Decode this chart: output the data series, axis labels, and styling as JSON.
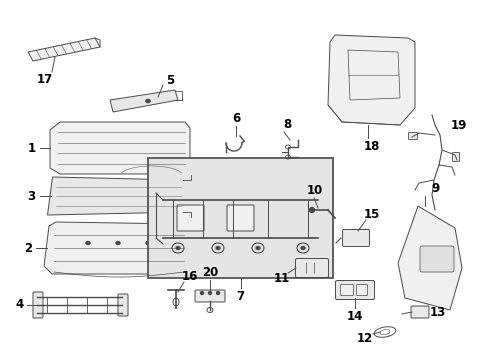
{
  "bg_color": "#ffffff",
  "border_color": "#cccccc",
  "line_color": "#4a4a4a",
  "label_color": "#000000",
  "box_fill": "#e0e0e0",
  "fig_w": 4.9,
  "fig_h": 3.6,
  "dpi": 100
}
